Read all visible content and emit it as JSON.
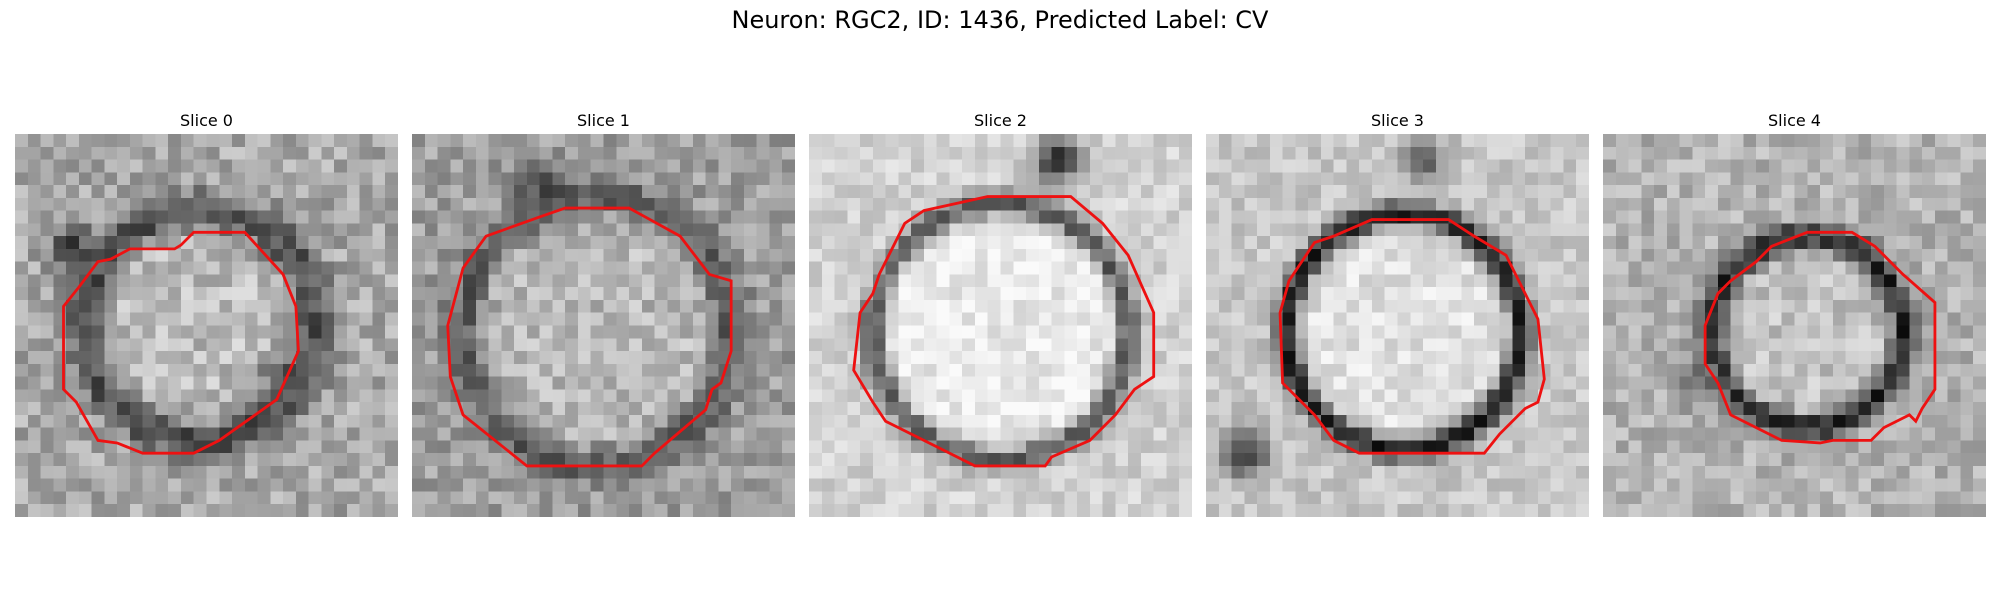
{
  "figure": {
    "title": "Neuron: RGC2, ID: 1436, Predicted Label: CV"
  },
  "panels": [
    {
      "title": "Slice 0",
      "contour_color": "#ee1111"
    },
    {
      "title": "Slice 1",
      "contour_color": "#ee1111"
    },
    {
      "title": "Slice 2",
      "contour_color": "#ee1111"
    },
    {
      "title": "Slice 3",
      "contour_color": "#ee1111"
    },
    {
      "title": "Slice 4",
      "contour_color": "#ee1111"
    }
  ]
}
